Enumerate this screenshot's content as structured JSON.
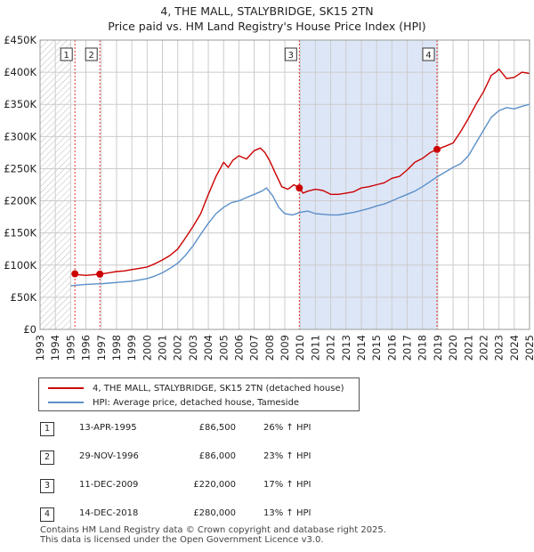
{
  "title_line1": "4, THE MALL, STALYBRIDGE, SK15 2TN",
  "title_line2": "Price paid vs. HM Land Registry's House Price Index (HPI)",
  "colors": {
    "property": "#cc0000",
    "hpi": "#5b8fc9",
    "highlight": "#dde6f7",
    "hatch": "#bbbbbb"
  },
  "legend": {
    "property_label": "4, THE MALL, STALYBRIDGE, SK15 2TN (detached house)",
    "hpi_label": "HPI: Average price, detached house, Tameside"
  },
  "sales": [
    {
      "num": "1",
      "date": "13-APR-1995",
      "price": "£86,500",
      "hpi": "26% ↑ HPI"
    },
    {
      "num": "2",
      "date": "29-NOV-1996",
      "price": "£86,000",
      "hpi": "23% ↑ HPI"
    },
    {
      "num": "3",
      "date": "11-DEC-2009",
      "price": "£220,000",
      "hpi": "17% ↑ HPI"
    },
    {
      "num": "4",
      "date": "14-DEC-2018",
      "price": "£280,000",
      "hpi": "13% ↑ HPI"
    }
  ],
  "footer_line1": "Contains HM Land Registry data © Crown copyright and database right 2025.",
  "footer_line2": "This data is licensed under the Open Government Licence v3.0.",
  "chart_data": {
    "type": "line",
    "title": "4, THE MALL, STALYBRIDGE, SK15 2TN — Price paid vs. HM Land Registry's House Price Index (HPI)",
    "xlabel": "",
    "ylabel": "",
    "xlim": [
      1993,
      2025
    ],
    "ylim": [
      0,
      450000
    ],
    "x_ticks": [
      "1993",
      "1994",
      "1995",
      "1996",
      "1997",
      "1998",
      "1999",
      "2000",
      "2001",
      "2002",
      "2003",
      "2004",
      "2005",
      "2006",
      "2007",
      "2008",
      "2009",
      "2010",
      "2011",
      "2012",
      "2013",
      "2014",
      "2015",
      "2016",
      "2017",
      "2018",
      "2019",
      "2020",
      "2021",
      "2022",
      "2023",
      "2024",
      "2025"
    ],
    "y_ticks": [
      {
        "value": 0,
        "label": "£0"
      },
      {
        "value": 50000,
        "label": "£50K"
      },
      {
        "value": 100000,
        "label": "£100K"
      },
      {
        "value": 150000,
        "label": "£150K"
      },
      {
        "value": 200000,
        "label": "£200K"
      },
      {
        "value": 250000,
        "label": "£250K"
      },
      {
        "value": 300000,
        "label": "£300K"
      },
      {
        "value": 350000,
        "label": "£350K"
      },
      {
        "value": 400000,
        "label": "£400K"
      },
      {
        "value": 450000,
        "label": "£450K"
      }
    ],
    "grid": true,
    "hatched_before": 1995.0,
    "highlight_range": [
      2009.95,
      2018.95
    ],
    "sale_markers": [
      {
        "num": "1",
        "x": 1995.28,
        "price": 86500
      },
      {
        "num": "2",
        "x": 1996.91,
        "price": 86000
      },
      {
        "num": "3",
        "x": 2009.95,
        "price": 220000
      },
      {
        "num": "4",
        "x": 2018.95,
        "price": 280000
      }
    ],
    "series": [
      {
        "name": "4, THE MALL, STALYBRIDGE, SK15 2TN (detached house)",
        "color": "#cc0000",
        "x": [
          1995.28,
          1995.5,
          1996.0,
          1996.5,
          1996.91,
          1997.5,
          1998.0,
          1998.5,
          1999.0,
          1999.5,
          2000.0,
          2000.5,
          2001.0,
          2001.5,
          2002.0,
          2002.5,
          2003.0,
          2003.5,
          2004.0,
          2004.5,
          2005.0,
          2005.3,
          2005.6,
          2006.0,
          2006.5,
          2007.0,
          2007.4,
          2007.7,
          2008.0,
          2008.4,
          2008.8,
          2009.2,
          2009.6,
          2009.95,
          2010.2,
          2010.5,
          2011.0,
          2011.5,
          2012.0,
          2012.5,
          2013.0,
          2013.5,
          2014.0,
          2014.5,
          2015.0,
          2015.5,
          2016.0,
          2016.5,
          2017.0,
          2017.5,
          2018.0,
          2018.5,
          2018.95,
          2019.5,
          2020.0,
          2020.5,
          2021.0,
          2021.5,
          2022.0,
          2022.5,
          2022.8,
          2023.0,
          2023.5,
          2024.0,
          2024.5,
          2025.0
        ],
        "values": [
          86500,
          85000,
          84000,
          85000,
          86000,
          88000,
          90000,
          91000,
          93000,
          95000,
          97000,
          102000,
          108000,
          115000,
          125000,
          142000,
          160000,
          180000,
          210000,
          238000,
          260000,
          252000,
          263000,
          270000,
          265000,
          278000,
          282000,
          275000,
          263000,
          242000,
          222000,
          218000,
          225000,
          220000,
          212000,
          215000,
          218000,
          216000,
          210000,
          210000,
          212000,
          214000,
          220000,
          222000,
          225000,
          228000,
          235000,
          238000,
          248000,
          260000,
          266000,
          275000,
          280000,
          285000,
          290000,
          308000,
          328000,
          350000,
          370000,
          395000,
          400000,
          405000,
          390000,
          392000,
          400000,
          398000
        ]
      },
      {
        "name": "HPI: Average price, detached house, Tameside",
        "color": "#5b8fc9",
        "x": [
          1995.0,
          1995.5,
          1996.0,
          1996.5,
          1997.0,
          1997.5,
          1998.0,
          1998.5,
          1999.0,
          1999.5,
          2000.0,
          2000.5,
          2001.0,
          2001.5,
          2002.0,
          2002.5,
          2003.0,
          2003.5,
          2004.0,
          2004.5,
          2005.0,
          2005.5,
          2006.0,
          2006.5,
          2007.0,
          2007.5,
          2007.8,
          2008.2,
          2008.6,
          2009.0,
          2009.5,
          2010.0,
          2010.5,
          2011.0,
          2011.5,
          2012.0,
          2012.5,
          2013.0,
          2013.5,
          2014.0,
          2014.5,
          2015.0,
          2015.5,
          2016.0,
          2016.5,
          2017.0,
          2017.5,
          2018.0,
          2018.5,
          2019.0,
          2019.5,
          2020.0,
          2020.5,
          2021.0,
          2021.5,
          2022.0,
          2022.5,
          2023.0,
          2023.5,
          2024.0,
          2024.5,
          2025.0
        ],
        "values": [
          68000,
          69000,
          70000,
          70500,
          71000,
          72000,
          73000,
          74000,
          75000,
          77000,
          79000,
          83000,
          88000,
          95000,
          103000,
          115000,
          130000,
          148000,
          165000,
          180000,
          190000,
          197000,
          200000,
          205000,
          210000,
          215000,
          220000,
          208000,
          190000,
          180000,
          178000,
          182000,
          184000,
          180000,
          179000,
          178000,
          178000,
          180000,
          182000,
          185000,
          188000,
          192000,
          195000,
          200000,
          205000,
          210000,
          215000,
          222000,
          230000,
          238000,
          245000,
          252000,
          258000,
          270000,
          290000,
          310000,
          330000,
          340000,
          345000,
          343000,
          347000,
          350000
        ]
      }
    ]
  }
}
